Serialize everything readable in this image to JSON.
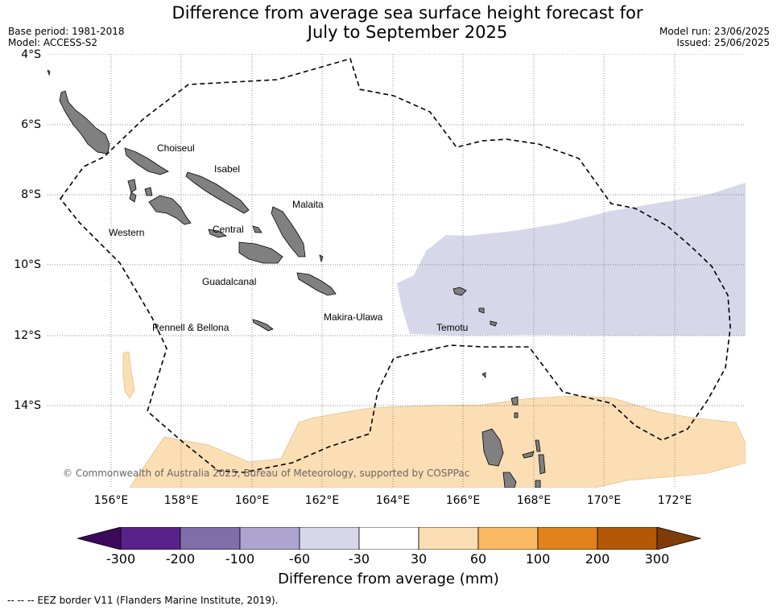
{
  "header": {
    "title_line1": "Difference from average sea surface height forecast for",
    "title_line2": "July to September 2025",
    "base_period": "Base period: 1981-2018",
    "model": "Model: ACCESS-S2",
    "model_run": "Model run: 23/06/2025",
    "issued": "Issued: 25/06/2025"
  },
  "map": {
    "lat_labels": [
      "4°S",
      "6°S",
      "8°S",
      "10°S",
      "12°S",
      "14°S"
    ],
    "lon_labels": [
      "156°E",
      "158°E",
      "160°E",
      "162°E",
      "164°E",
      "166°E",
      "168°E",
      "170°E",
      "172°E"
    ],
    "provinces": [
      "Choiseul",
      "Isabel",
      "Malaita",
      "Western",
      "Central",
      "Guadalcanal",
      "Makira-Ulawa",
      "Rennell & Bellona",
      "Temotu"
    ],
    "copyright": "© Commonwealth of Australia 2025, Bureau of Meteorology, supported by COSPPac",
    "colors": {
      "ocean": "#ffffff",
      "land": "#808080",
      "negative_light": "#d7d7ea",
      "positive_light": "#fcdeb4"
    }
  },
  "colorbar": {
    "ticks": [
      "-300",
      "-200",
      "-100",
      "-60",
      "-30",
      "30",
      "60",
      "100",
      "200",
      "300"
    ],
    "colors": [
      "#3d0a5b",
      "#58228a",
      "#7f6eaa",
      "#ada5d0",
      "#d7d7ea",
      "#ffffff",
      "#fcdeb4",
      "#fbb862",
      "#e1821a",
      "#b35806",
      "#7f3b08"
    ],
    "label": "Difference from average (mm)"
  },
  "footer": {
    "legend_note": "--  --  -- EEZ border V11 (Flanders Marine Institute, 2019)."
  }
}
